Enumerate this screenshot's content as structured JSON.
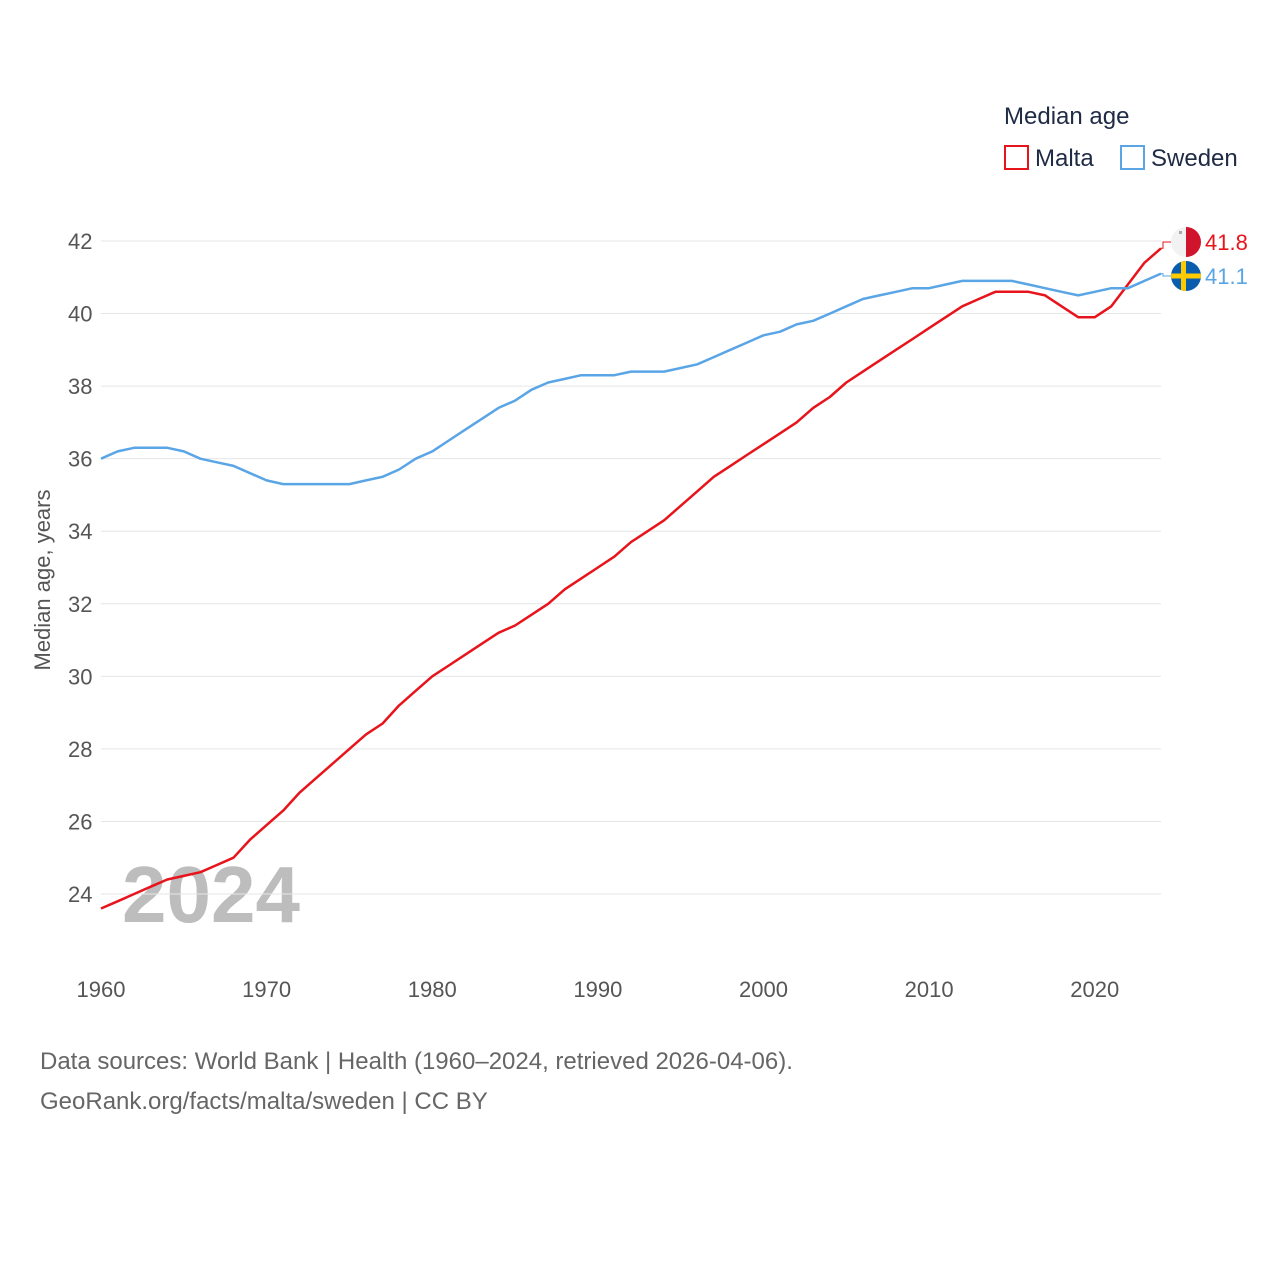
{
  "chart_data": {
    "type": "line",
    "title": "Median age",
    "xlabel": "",
    "ylabel": "Median age, years",
    "xlim": [
      1960,
      2024
    ],
    "ylim": [
      23.2,
      42.3
    ],
    "x_ticks": [
      1960,
      1970,
      1980,
      1990,
      2000,
      2010,
      2020
    ],
    "y_ticks": [
      24,
      26,
      28,
      30,
      32,
      34,
      36,
      38,
      40,
      42
    ],
    "grid": true,
    "legend": "top-right",
    "year_label": "2024",
    "x": [
      1960,
      1961,
      1962,
      1963,
      1964,
      1965,
      1966,
      1967,
      1968,
      1969,
      1970,
      1971,
      1972,
      1973,
      1974,
      1975,
      1976,
      1977,
      1978,
      1979,
      1980,
      1981,
      1982,
      1983,
      1984,
      1985,
      1986,
      1987,
      1988,
      1989,
      1990,
      1991,
      1992,
      1993,
      1994,
      1995,
      1996,
      1997,
      1998,
      1999,
      2000,
      2001,
      2002,
      2003,
      2004,
      2005,
      2006,
      2007,
      2008,
      2009,
      2010,
      2011,
      2012,
      2013,
      2014,
      2015,
      2016,
      2017,
      2018,
      2019,
      2020,
      2021,
      2022,
      2023,
      2024
    ],
    "series": [
      {
        "name": "Malta",
        "color": "#e8141b",
        "end_label": "41.8",
        "flag": "malta-flag-icon",
        "values": [
          23.6,
          23.8,
          24.0,
          24.2,
          24.4,
          24.5,
          24.6,
          24.8,
          25.0,
          25.5,
          25.9,
          26.3,
          26.8,
          27.2,
          27.6,
          28.0,
          28.4,
          28.7,
          29.2,
          29.6,
          30.0,
          30.3,
          30.6,
          30.9,
          31.2,
          31.4,
          31.7,
          32.0,
          32.4,
          32.7,
          33.0,
          33.3,
          33.7,
          34.0,
          34.3,
          34.7,
          35.1,
          35.5,
          35.8,
          36.1,
          36.4,
          36.7,
          37.0,
          37.4,
          37.7,
          38.1,
          38.4,
          38.7,
          39.0,
          39.3,
          39.6,
          39.9,
          40.2,
          40.4,
          40.6,
          40.6,
          40.6,
          40.5,
          40.2,
          39.9,
          39.9,
          40.2,
          40.8,
          41.4,
          41.8
        ]
      },
      {
        "name": "Sweden",
        "color": "#5aa5e6",
        "end_label": "41.1",
        "flag": "sweden-flag-icon",
        "values": [
          36.0,
          36.2,
          36.3,
          36.3,
          36.3,
          36.2,
          36.0,
          35.9,
          35.8,
          35.6,
          35.4,
          35.3,
          35.3,
          35.3,
          35.3,
          35.3,
          35.4,
          35.5,
          35.7,
          36.0,
          36.2,
          36.5,
          36.8,
          37.1,
          37.4,
          37.6,
          37.9,
          38.1,
          38.2,
          38.3,
          38.3,
          38.3,
          38.4,
          38.4,
          38.4,
          38.5,
          38.6,
          38.8,
          39.0,
          39.2,
          39.4,
          39.5,
          39.7,
          39.8,
          40.0,
          40.2,
          40.4,
          40.5,
          40.6,
          40.7,
          40.7,
          40.8,
          40.9,
          40.9,
          40.9,
          40.9,
          40.8,
          40.7,
          40.6,
          40.5,
          40.6,
          40.7,
          40.7,
          40.9,
          41.1
        ]
      }
    ]
  },
  "source": {
    "line1": "Data sources: World Bank | Health (1960–2024, retrieved 2026-04-06).",
    "line2": "GeoRank.org/facts/malta/sweden | CC BY"
  }
}
